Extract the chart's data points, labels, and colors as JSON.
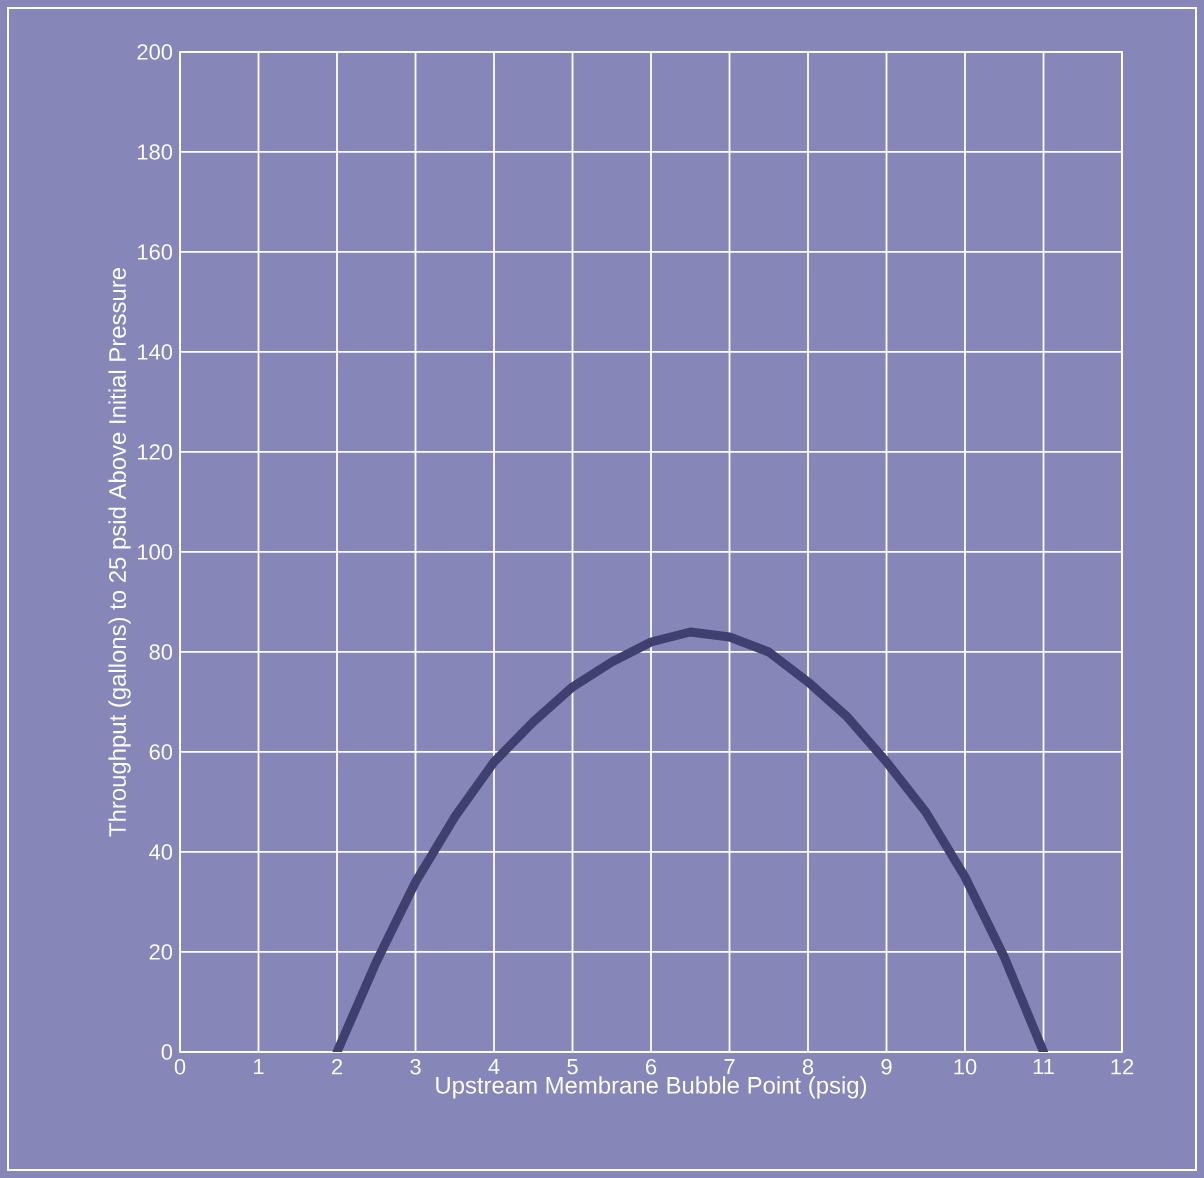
{
  "chart_data": {
    "type": "line",
    "xlabel": "Upstream Membrane Bubble Point (psig)",
    "ylabel": "Throughput (gallons) to 25 psid Above Initial Pressure",
    "xlim": [
      0,
      12
    ],
    "ylim": [
      0,
      200
    ],
    "xticks": [
      0,
      1,
      2,
      3,
      4,
      5,
      6,
      7,
      8,
      9,
      10,
      11,
      12
    ],
    "yticks": [
      0,
      20,
      40,
      60,
      80,
      100,
      120,
      140,
      160,
      180,
      200
    ],
    "grid": true,
    "marker": "none",
    "line_style": "solid",
    "series": [
      {
        "color": "#3f4070",
        "x": [
          2,
          2.5,
          3,
          3.5,
          4,
          4.5,
          5,
          5.5,
          6,
          6.5,
          7,
          7.5,
          8,
          8.5,
          9,
          9.5,
          10,
          10.5,
          11
        ],
        "values": [
          0,
          18,
          34,
          47,
          58,
          66,
          73,
          78,
          82,
          84,
          83,
          80,
          74,
          67,
          58,
          48,
          35,
          19,
          0
        ]
      }
    ]
  }
}
